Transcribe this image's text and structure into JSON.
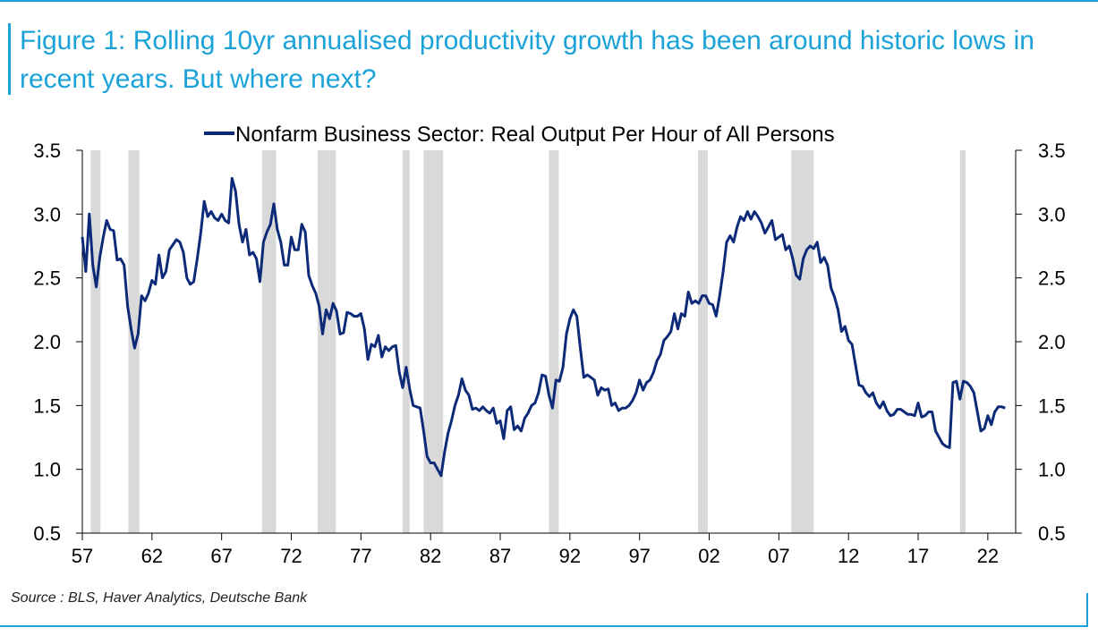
{
  "header": {
    "title": "Figure 1: Rolling 10yr annualised productivity growth has been around historic lows in recent years. But where next?"
  },
  "footer": {
    "source": "Source : BLS, Haver Analytics, Deutsche Bank"
  },
  "colors": {
    "accent": "#1ba2d8",
    "series": "#0c2a78",
    "recession": "#d9d9d9"
  },
  "chart_data": {
    "type": "line",
    "title": "",
    "xlabel": "",
    "ylabel": "",
    "xlim": [
      1956.9,
      1957.0
    ],
    "ylim": [
      0.5,
      3.5
    ],
    "yticks": [
      "0.5",
      "1.0",
      "1.5",
      "2.0",
      "2.5",
      "3.0",
      "3.5"
    ],
    "xticks": [
      "57",
      "62",
      "67",
      "72",
      "77",
      "82",
      "87",
      "92",
      "97",
      "02",
      "07",
      "12",
      "17",
      "22"
    ],
    "legend": "top-center",
    "grid": false,
    "dual_y_axis": true,
    "recessions": [
      [
        1957.6,
        1958.3
      ],
      [
        1960.3,
        1961.1
      ],
      [
        1969.9,
        1970.9
      ],
      [
        1973.9,
        1975.2
      ],
      [
        1980.0,
        1980.5
      ],
      [
        1981.5,
        1982.9
      ],
      [
        1990.5,
        1991.2
      ],
      [
        2001.2,
        2001.9
      ],
      [
        2007.9,
        2009.5
      ],
      [
        2020.0,
        2020.4
      ]
    ],
    "series": [
      {
        "name": "Nonfarm Business Sector: Real Output Per Hour of All Persons",
        "points": [
          [
            1957.0,
            2.82
          ],
          [
            1957.25,
            2.55
          ],
          [
            1957.5,
            3.0
          ],
          [
            1957.75,
            2.6
          ],
          [
            1958.0,
            2.43
          ],
          [
            1958.25,
            2.66
          ],
          [
            1958.5,
            2.82
          ],
          [
            1958.75,
            2.95
          ],
          [
            1959.0,
            2.88
          ],
          [
            1959.25,
            2.87
          ],
          [
            1959.5,
            2.64
          ],
          [
            1959.75,
            2.65
          ],
          [
            1960.0,
            2.6
          ],
          [
            1960.25,
            2.28
          ],
          [
            1960.5,
            2.1
          ],
          [
            1960.75,
            1.95
          ],
          [
            1961.0,
            2.06
          ],
          [
            1961.25,
            2.36
          ],
          [
            1961.5,
            2.32
          ],
          [
            1961.75,
            2.38
          ],
          [
            1962.0,
            2.48
          ],
          [
            1962.25,
            2.45
          ],
          [
            1962.5,
            2.68
          ],
          [
            1962.75,
            2.5
          ],
          [
            1963.0,
            2.55
          ],
          [
            1963.25,
            2.72
          ],
          [
            1963.5,
            2.76
          ],
          [
            1963.75,
            2.8
          ],
          [
            1964.0,
            2.78
          ],
          [
            1964.25,
            2.7
          ],
          [
            1964.5,
            2.5
          ],
          [
            1964.75,
            2.45
          ],
          [
            1965.0,
            2.47
          ],
          [
            1965.25,
            2.65
          ],
          [
            1965.5,
            2.85
          ],
          [
            1965.75,
            3.1
          ],
          [
            1966.0,
            2.98
          ],
          [
            1966.25,
            3.02
          ],
          [
            1966.5,
            2.97
          ],
          [
            1966.75,
            2.95
          ],
          [
            1967.0,
            3.0
          ],
          [
            1967.25,
            2.95
          ],
          [
            1967.5,
            2.93
          ],
          [
            1967.75,
            3.28
          ],
          [
            1968.0,
            3.18
          ],
          [
            1968.25,
            2.92
          ],
          [
            1968.5,
            2.78
          ],
          [
            1968.75,
            2.88
          ],
          [
            1969.0,
            2.68
          ],
          [
            1969.25,
            2.7
          ],
          [
            1969.5,
            2.65
          ],
          [
            1969.75,
            2.47
          ],
          [
            1970.0,
            2.78
          ],
          [
            1970.25,
            2.86
          ],
          [
            1970.5,
            2.92
          ],
          [
            1970.75,
            3.08
          ],
          [
            1971.0,
            2.88
          ],
          [
            1971.25,
            2.78
          ],
          [
            1971.5,
            2.6
          ],
          [
            1971.75,
            2.6
          ],
          [
            1972.0,
            2.82
          ],
          [
            1972.25,
            2.72
          ],
          [
            1972.5,
            2.72
          ],
          [
            1972.75,
            2.92
          ],
          [
            1973.0,
            2.86
          ],
          [
            1973.25,
            2.52
          ],
          [
            1973.5,
            2.44
          ],
          [
            1973.75,
            2.38
          ],
          [
            1974.0,
            2.28
          ],
          [
            1974.25,
            2.06
          ],
          [
            1974.5,
            2.25
          ],
          [
            1974.75,
            2.18
          ],
          [
            1975.0,
            2.3
          ],
          [
            1975.25,
            2.24
          ],
          [
            1975.5,
            2.06
          ],
          [
            1975.75,
            2.07
          ],
          [
            1976.0,
            2.23
          ],
          [
            1976.25,
            2.22
          ],
          [
            1976.5,
            2.2
          ],
          [
            1976.75,
            2.2
          ],
          [
            1977.0,
            2.22
          ],
          [
            1977.25,
            2.1
          ],
          [
            1977.5,
            1.86
          ],
          [
            1977.75,
            1.98
          ],
          [
            1978.0,
            1.96
          ],
          [
            1978.25,
            2.05
          ],
          [
            1978.5,
            1.88
          ],
          [
            1978.75,
            1.96
          ],
          [
            1979.0,
            1.93
          ],
          [
            1979.25,
            1.96
          ],
          [
            1979.5,
            1.97
          ],
          [
            1979.75,
            1.76
          ],
          [
            1980.0,
            1.64
          ],
          [
            1980.25,
            1.8
          ],
          [
            1980.5,
            1.63
          ],
          [
            1980.75,
            1.5
          ],
          [
            1981.0,
            1.49
          ],
          [
            1981.25,
            1.48
          ],
          [
            1981.5,
            1.3
          ],
          [
            1981.75,
            1.1
          ],
          [
            1982.0,
            1.05
          ],
          [
            1982.25,
            1.05
          ],
          [
            1982.5,
            1.0
          ],
          [
            1982.75,
            0.95
          ],
          [
            1983.0,
            1.13
          ],
          [
            1983.25,
            1.28
          ],
          [
            1983.5,
            1.38
          ],
          [
            1983.75,
            1.5
          ],
          [
            1984.0,
            1.58
          ],
          [
            1984.25,
            1.71
          ],
          [
            1984.5,
            1.62
          ],
          [
            1984.75,
            1.58
          ],
          [
            1985.0,
            1.47
          ],
          [
            1985.25,
            1.48
          ],
          [
            1985.5,
            1.46
          ],
          [
            1985.75,
            1.49
          ],
          [
            1986.0,
            1.46
          ],
          [
            1986.25,
            1.44
          ],
          [
            1986.5,
            1.48
          ],
          [
            1986.75,
            1.36
          ],
          [
            1987.0,
            1.38
          ],
          [
            1987.25,
            1.24
          ],
          [
            1987.5,
            1.46
          ],
          [
            1987.75,
            1.49
          ],
          [
            1988.0,
            1.31
          ],
          [
            1988.25,
            1.34
          ],
          [
            1988.5,
            1.3
          ],
          [
            1988.75,
            1.4
          ],
          [
            1989.0,
            1.44
          ],
          [
            1989.25,
            1.5
          ],
          [
            1989.5,
            1.52
          ],
          [
            1989.75,
            1.6
          ],
          [
            1990.0,
            1.74
          ],
          [
            1990.25,
            1.73
          ],
          [
            1990.5,
            1.58
          ],
          [
            1990.75,
            1.48
          ],
          [
            1991.0,
            1.7
          ],
          [
            1991.25,
            1.69
          ],
          [
            1991.5,
            1.8
          ],
          [
            1991.75,
            2.06
          ],
          [
            1992.0,
            2.18
          ],
          [
            1992.25,
            2.25
          ],
          [
            1992.5,
            2.2
          ],
          [
            1992.75,
            1.95
          ],
          [
            1993.0,
            1.72
          ],
          [
            1993.25,
            1.74
          ],
          [
            1993.5,
            1.72
          ],
          [
            1993.75,
            1.7
          ],
          [
            1994.0,
            1.58
          ],
          [
            1994.25,
            1.64
          ],
          [
            1994.5,
            1.62
          ],
          [
            1994.75,
            1.63
          ],
          [
            1995.0,
            1.5
          ],
          [
            1995.25,
            1.52
          ],
          [
            1995.5,
            1.46
          ],
          [
            1995.75,
            1.48
          ],
          [
            1996.0,
            1.48
          ],
          [
            1996.25,
            1.5
          ],
          [
            1996.5,
            1.54
          ],
          [
            1996.75,
            1.6
          ],
          [
            1997.0,
            1.7
          ],
          [
            1997.25,
            1.62
          ],
          [
            1997.5,
            1.68
          ],
          [
            1997.75,
            1.7
          ],
          [
            1998.0,
            1.76
          ],
          [
            1998.25,
            1.85
          ],
          [
            1998.5,
            1.9
          ],
          [
            1998.75,
            2.01
          ],
          [
            1999.0,
            2.04
          ],
          [
            1999.25,
            2.08
          ],
          [
            1999.5,
            2.22
          ],
          [
            1999.75,
            2.1
          ],
          [
            2000.0,
            2.22
          ],
          [
            2000.25,
            2.2
          ],
          [
            2000.5,
            2.39
          ],
          [
            2000.75,
            2.3
          ],
          [
            2001.0,
            2.32
          ],
          [
            2001.25,
            2.3
          ],
          [
            2001.5,
            2.36
          ],
          [
            2001.75,
            2.36
          ],
          [
            2002.0,
            2.3
          ],
          [
            2002.25,
            2.29
          ],
          [
            2002.5,
            2.2
          ],
          [
            2002.75,
            2.36
          ],
          [
            2003.0,
            2.55
          ],
          [
            2003.25,
            2.78
          ],
          [
            2003.5,
            2.83
          ],
          [
            2003.75,
            2.78
          ],
          [
            2004.0,
            2.9
          ],
          [
            2004.25,
            2.98
          ],
          [
            2004.5,
            2.95
          ],
          [
            2004.75,
            3.02
          ],
          [
            2005.0,
            2.96
          ],
          [
            2005.25,
            3.02
          ],
          [
            2005.5,
            2.98
          ],
          [
            2005.75,
            2.93
          ],
          [
            2006.0,
            2.85
          ],
          [
            2006.25,
            2.9
          ],
          [
            2006.5,
            2.95
          ],
          [
            2006.75,
            2.8
          ],
          [
            2007.0,
            2.82
          ],
          [
            2007.25,
            2.84
          ],
          [
            2007.5,
            2.72
          ],
          [
            2007.75,
            2.75
          ],
          [
            2008.0,
            2.65
          ],
          [
            2008.25,
            2.52
          ],
          [
            2008.5,
            2.49
          ],
          [
            2008.75,
            2.65
          ],
          [
            2009.0,
            2.72
          ],
          [
            2009.25,
            2.75
          ],
          [
            2009.5,
            2.73
          ],
          [
            2009.75,
            2.78
          ],
          [
            2010.0,
            2.62
          ],
          [
            2010.25,
            2.66
          ],
          [
            2010.5,
            2.6
          ],
          [
            2010.75,
            2.42
          ],
          [
            2011.0,
            2.35
          ],
          [
            2011.25,
            2.25
          ],
          [
            2011.5,
            2.08
          ],
          [
            2011.75,
            2.12
          ],
          [
            2012.0,
            2.01
          ],
          [
            2012.25,
            1.98
          ],
          [
            2012.5,
            1.82
          ],
          [
            2012.75,
            1.66
          ],
          [
            2013.0,
            1.65
          ],
          [
            2013.25,
            1.6
          ],
          [
            2013.5,
            1.57
          ],
          [
            2013.75,
            1.6
          ],
          [
            2014.0,
            1.52
          ],
          [
            2014.25,
            1.48
          ],
          [
            2014.5,
            1.53
          ],
          [
            2014.75,
            1.46
          ],
          [
            2015.0,
            1.42
          ],
          [
            2015.25,
            1.43
          ],
          [
            2015.5,
            1.47
          ],
          [
            2015.75,
            1.47
          ],
          [
            2016.0,
            1.45
          ],
          [
            2016.25,
            1.43
          ],
          [
            2016.5,
            1.43
          ],
          [
            2016.75,
            1.42
          ],
          [
            2017.0,
            1.52
          ],
          [
            2017.25,
            1.41
          ],
          [
            2017.5,
            1.42
          ],
          [
            2017.75,
            1.45
          ],
          [
            2018.0,
            1.45
          ],
          [
            2018.25,
            1.3
          ],
          [
            2018.5,
            1.25
          ],
          [
            2018.75,
            1.2
          ],
          [
            2019.0,
            1.18
          ],
          [
            2019.25,
            1.17
          ],
          [
            2019.5,
            1.68
          ],
          [
            2019.75,
            1.69
          ],
          [
            2020.0,
            1.55
          ],
          [
            2020.25,
            1.69
          ],
          [
            2020.5,
            1.68
          ],
          [
            2020.75,
            1.65
          ],
          [
            2021.0,
            1.6
          ],
          [
            2021.25,
            1.45
          ],
          [
            2021.5,
            1.3
          ],
          [
            2021.75,
            1.32
          ],
          [
            2022.0,
            1.42
          ],
          [
            2022.25,
            1.35
          ],
          [
            2022.5,
            1.45
          ],
          [
            2022.75,
            1.49
          ],
          [
            2023.0,
            1.49
          ],
          [
            2023.25,
            1.48
          ]
        ]
      }
    ]
  }
}
